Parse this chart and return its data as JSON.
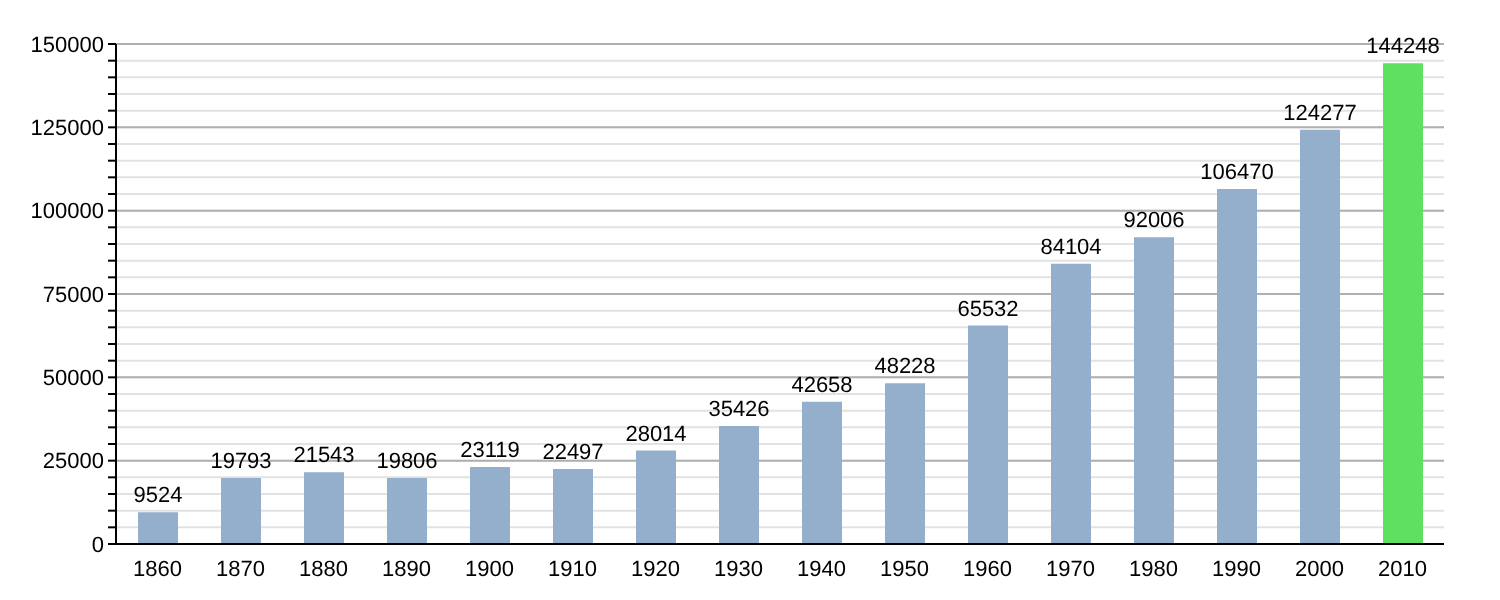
{
  "chart_data": {
    "type": "bar",
    "categories": [
      "1860",
      "1870",
      "1880",
      "1890",
      "1900",
      "1910",
      "1920",
      "1930",
      "1940",
      "1950",
      "1960",
      "1970",
      "1980",
      "1990",
      "2000",
      "2010"
    ],
    "values": [
      9524,
      19793,
      21543,
      19806,
      23119,
      22497,
      28014,
      35426,
      42658,
      48228,
      65532,
      84104,
      92006,
      106470,
      124277,
      144248
    ],
    "colors": [
      "#94afcb",
      "#94afcb",
      "#94afcb",
      "#94afcb",
      "#94afcb",
      "#94afcb",
      "#94afcb",
      "#94afcb",
      "#94afcb",
      "#94afcb",
      "#94afcb",
      "#94afcb",
      "#94afcb",
      "#94afcb",
      "#94afcb",
      "#5fe05f"
    ],
    "data_labels": true,
    "ylim": [
      0,
      150000
    ],
    "yticks": [
      0,
      {
        "value": 5000,
        "label": null
      },
      {
        "value": 10000,
        "label": null
      },
      {
        "value": 15000,
        "label": null
      },
      {
        "value": 20000,
        "label": null
      },
      25000,
      {
        "value": 30000,
        "label": null
      },
      {
        "value": 35000,
        "label": null
      },
      {
        "value": 40000,
        "label": null
      },
      {
        "value": 45000,
        "label": null
      },
      50000,
      {
        "value": 55000,
        "label": null
      },
      {
        "value": 60000,
        "label": null
      },
      {
        "value": 65000,
        "label": null
      },
      {
        "value": 70000,
        "label": null
      },
      75000,
      {
        "value": 80000,
        "label": null
      },
      {
        "value": 85000,
        "label": null
      },
      {
        "value": 90000,
        "label": null
      },
      {
        "value": 95000,
        "label": null
      },
      100000,
      {
        "value": 105000,
        "label": null
      },
      {
        "value": 110000,
        "label": null
      },
      {
        "value": 115000,
        "label": null
      },
      {
        "value": 120000,
        "label": null
      },
      125000,
      {
        "value": 130000,
        "label": null
      },
      {
        "value": 135000,
        "label": null
      },
      {
        "value": 140000,
        "label": null
      },
      {
        "value": 145000,
        "label": null
      },
      150000
    ],
    "grid": true
  }
}
